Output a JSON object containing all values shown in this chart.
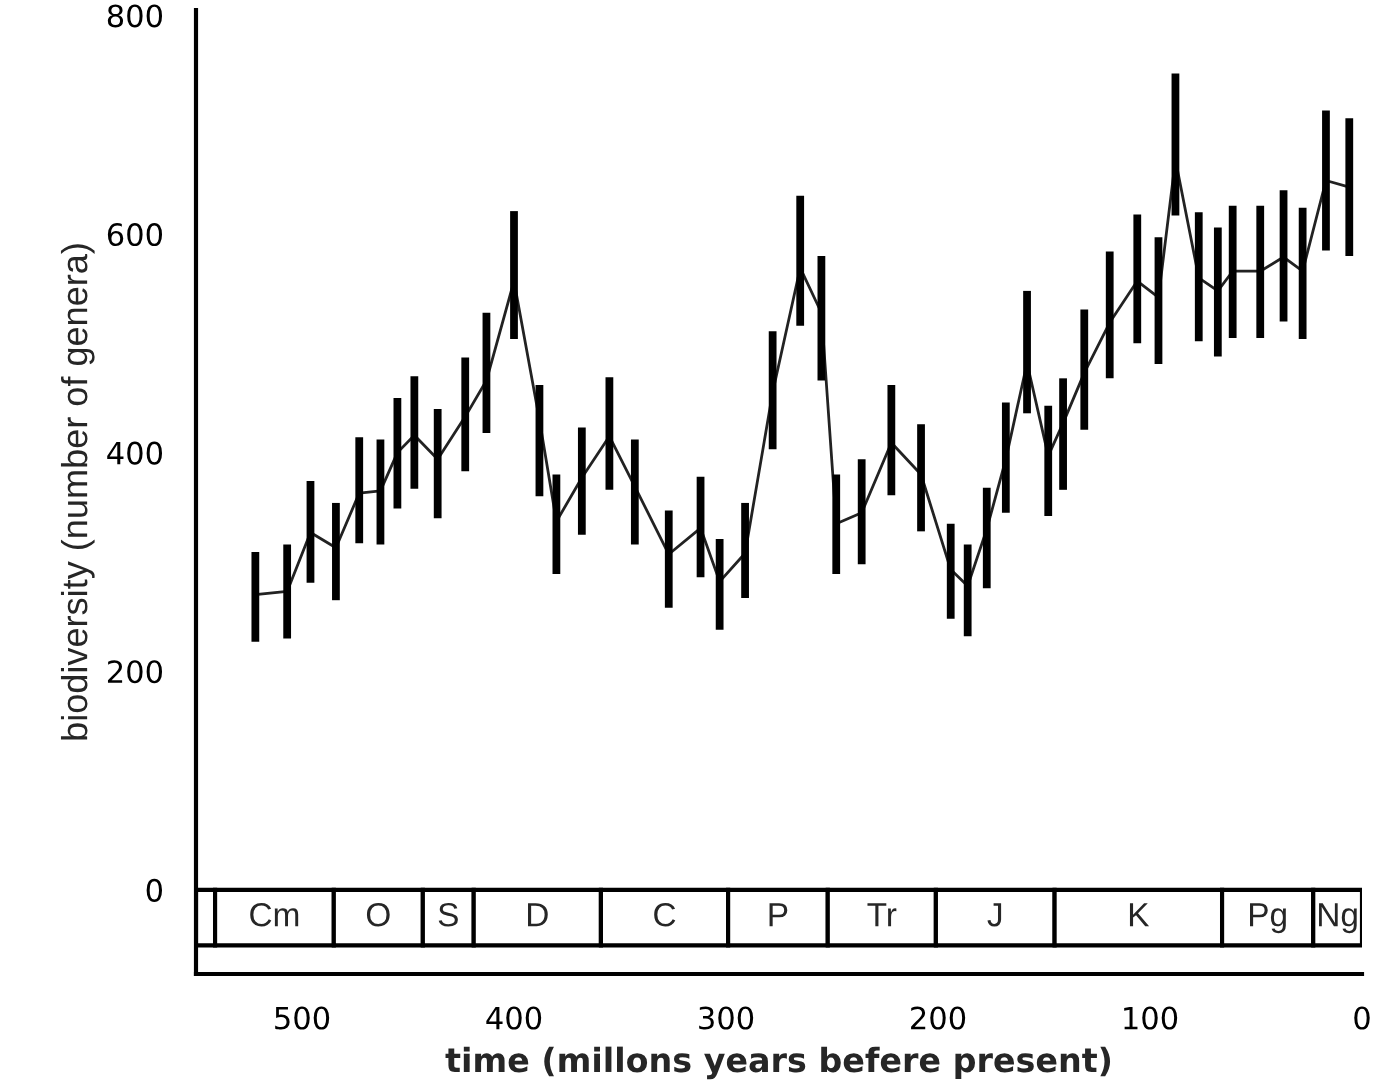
{
  "chart_data": {
    "type": "line",
    "xlabel": "time (millons years befere present)",
    "ylabel": "biodiversity (number of genera)",
    "xlim": [
      550,
      0
    ],
    "xticks": [
      500,
      400,
      300,
      200,
      100,
      0
    ],
    "ylim": [
      -77,
      805
    ],
    "yticks": [
      0,
      200,
      400,
      600,
      800
    ],
    "grid": false,
    "legend": false,
    "marker": "none",
    "line_style": "solid",
    "x": [
      522,
      507,
      496,
      484,
      473,
      463,
      455,
      447,
      436,
      423,
      413,
      400,
      388,
      380,
      368,
      355,
      343,
      327,
      312,
      303,
      291,
      278,
      265,
      255,
      248,
      236,
      222,
      208,
      194,
      186,
      177,
      168,
      158,
      148,
      141,
      131,
      119,
      106,
      96,
      88,
      77,
      68,
      61,
      48,
      37,
      28,
      17,
      6
    ],
    "series": [
      {
        "color": "#222222",
        "values": [
          270,
          273,
          327,
          313,
          363,
          365,
          400,
          416,
          394,
          433,
          466,
          557,
          430,
          337,
          377,
          415,
          369,
          307,
          331,
          282,
          308,
          455,
          569,
          528,
          335,
          345,
          409,
          380,
          293,
          278,
          330,
          394,
          482,
          397,
          427,
          473,
          519,
          557,
          542,
          668,
          560,
          548,
          566,
          566,
          579,
          566,
          649,
          643
        ],
        "errors": [
          [
            227,
            309
          ],
          [
            230,
            316
          ],
          [
            281,
            374
          ],
          [
            265,
            354
          ],
          [
            317,
            414
          ],
          [
            316,
            412
          ],
          [
            349,
            450
          ],
          [
            367,
            470
          ],
          [
            340,
            440
          ],
          [
            383,
            487
          ],
          [
            418,
            528
          ],
          [
            504,
            621
          ],
          [
            360,
            462
          ],
          [
            289,
            380
          ],
          [
            325,
            423
          ],
          [
            366,
            469
          ],
          [
            316,
            412
          ],
          [
            258,
            347
          ],
          [
            286,
            378
          ],
          [
            238,
            321
          ],
          [
            267,
            354
          ],
          [
            403,
            511
          ],
          [
            516,
            635
          ],
          [
            466,
            580
          ],
          [
            289,
            380
          ],
          [
            298,
            394
          ],
          [
            361,
            462
          ],
          [
            328,
            426
          ],
          [
            248,
            335
          ],
          [
            232,
            316
          ],
          [
            276,
            368
          ],
          [
            345,
            446
          ],
          [
            436,
            548
          ],
          [
            342,
            443
          ],
          [
            366,
            468
          ],
          [
            421,
            531
          ],
          [
            468,
            584
          ],
          [
            500,
            618
          ],
          [
            481,
            597
          ],
          [
            617,
            747
          ],
          [
            502,
            620
          ],
          [
            488,
            606
          ],
          [
            505,
            626
          ],
          [
            505,
            626
          ],
          [
            520,
            640
          ],
          [
            504,
            624
          ],
          [
            585,
            713
          ],
          [
            580,
            706
          ]
        ]
      }
    ],
    "bands": [
      {
        "axis": "x",
        "from": 550,
        "to": 541,
        "label": null
      },
      {
        "axis": "x",
        "from": 541,
        "to": 485,
        "label": "Cm"
      },
      {
        "axis": "x",
        "from": 485,
        "to": 443,
        "label": "O"
      },
      {
        "axis": "x",
        "from": 443,
        "to": 419,
        "label": "S"
      },
      {
        "axis": "x",
        "from": 419,
        "to": 359,
        "label": "D"
      },
      {
        "axis": "x",
        "from": 359,
        "to": 299,
        "label": "C"
      },
      {
        "axis": "x",
        "from": 299,
        "to": 252,
        "label": "P"
      },
      {
        "axis": "x",
        "from": 252,
        "to": 201,
        "label": "Tr"
      },
      {
        "axis": "x",
        "from": 201,
        "to": 145,
        "label": "J"
      },
      {
        "axis": "x",
        "from": 145,
        "to": 66,
        "label": "K"
      },
      {
        "axis": "x",
        "from": 66,
        "to": 23,
        "label": "Pg"
      },
      {
        "axis": "x",
        "from": 23,
        "to": 0,
        "label": "Ng"
      }
    ]
  }
}
